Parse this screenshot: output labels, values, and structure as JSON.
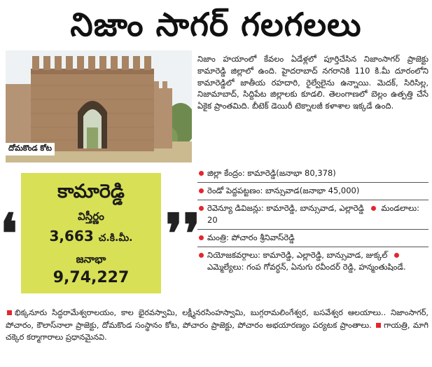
{
  "title": "నిజాం సాగర్ గలగలలు",
  "photo": {
    "caption": "దోమకొండ కోట"
  },
  "intro": "నిజాం హయాంలో కేవలం ఏడేళ్లలో పూర్తిచేసిన నిజాంసాగర్ ప్రాజెక్టు కామారెడ్డి జిల్లాలో ఉంది. హైదరాబాద్ నగరానికి 110 కి.మీ దూరంలోని కామారెడ్డిలో జాతీయ రహదారి, రైల్వేలైను ఉన్నాయి. మెదక్, సిరిసిల్ల, నిజామాబాద్, సిద్దిపేట జిల్లాలకు కూడలి. తెలంగాణలో బెల్లం ఉత్పత్తి చేసే ఏకైక ప్రాంతమిది. బీటెక్ డెయిరీ టెక్నాలజీ కళాశాల ఇక్కడే ఉంది.",
  "infobox": {
    "district": "కామారెడ్డి",
    "area_label": "విస్తీర్ణం",
    "area_value": "3,663",
    "area_unit": "చ.కి.మీ.",
    "population_label": "జనాభా",
    "population_value": "9,74,227",
    "accent_color": "#d8e055"
  },
  "facts": {
    "headquarters": "జిల్లా కేంద్రం: కామారెడ్డి(జనాభా 80,378)",
    "second_city": "రెండో పెద్దపట్టణం: బాన్సువాడ(జనాభా 45,000)",
    "revenue_divisions": "రెవెన్యూ డివిజన్లు: కామారెడ్డి, బాన్సువాడ, ఎల్లారెడ్డి",
    "mandals": "మండలాలు: 20",
    "minister": "మంత్రి: పోచారం శ్రీనివాస్‌రెడ్డి",
    "constituencies": "నియోజకవర్గాలు: కామారెడ్డి, ఎల్లారెడ్డి, బాన్సువాడ, జుక్కల్",
    "mlas": "ఎమ్మెల్యేలు: గంప గోవర్ధన్, ఏనుగు రవీందర్ రెడ్డి, హన్మంతుషిండే."
  },
  "footer": {
    "attractions": "భిక్కనూరు సిద్ధరామేశ్వరాలయం, కాల భైరవస్వామి, లక్ష్మీనరసింహస్వామి, బుగ్గరామలింగేశ్వర, బసవేశ్వర ఆలయాలు.. నిజాంసాగర్, పోచారం, కౌలాస్‌నాలా ప్రాజెక్టు, దోమకొండ సంస్థానం కోట, పోచారం ప్రాజెక్టు, పోచారం అభయారణ్యం పర్యటక ప్రాంతాలు.",
    "industries": "గాయత్రి, మాగి చక్కెర కర్మాగారాలు ప్రధానమైనవి."
  },
  "colors": {
    "bullet": "#e3262d",
    "text": "#1a1a1a"
  }
}
